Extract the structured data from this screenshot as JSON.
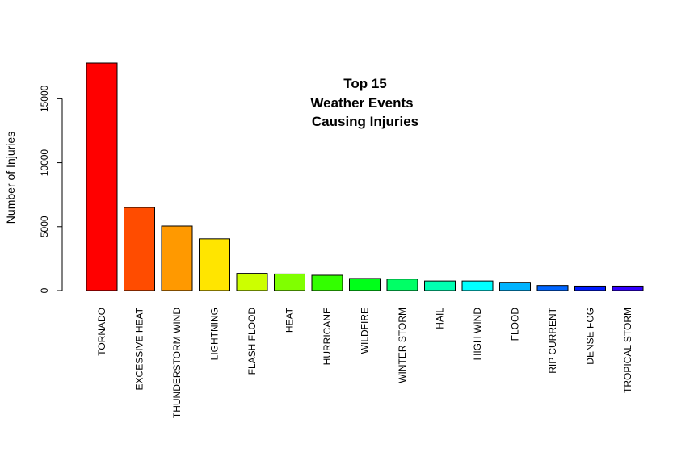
{
  "chart_data": {
    "type": "bar",
    "title_lines": [
      "Top 15",
      "Weather Events",
      "Causing Injuries"
    ],
    "xlabel": "",
    "ylabel": "Number of Injuries",
    "ylim": [
      0,
      17800
    ],
    "yticks": [
      0,
      5000,
      10000,
      15000
    ],
    "grid": false,
    "categories": [
      "TORNADO",
      "EXCESSIVE HEAT",
      "THUNDERSTORM WIND",
      "LIGHTNING",
      "FLASH FLOOD",
      "HEAT",
      "HURRICANE",
      "WILDFIRE",
      "WINTER STORM",
      "HAIL",
      "HIGH WIND",
      "FLOOD",
      "RIP CURRENT",
      "DENSE FOG",
      "TROPICAL STORM"
    ],
    "values": [
      17800,
      6500,
      5050,
      4050,
      1350,
      1300,
      1200,
      950,
      900,
      750,
      750,
      650,
      400,
      350,
      350
    ],
    "colors": [
      "#FF0000",
      "#FF4C00",
      "#FF9900",
      "#FFE500",
      "#CCFF00",
      "#80FF00",
      "#33FF00",
      "#00FF19",
      "#00FF66",
      "#00FFB2",
      "#00FFFF",
      "#00B3FF",
      "#0066FF",
      "#001AFF",
      "#3300FF"
    ]
  }
}
